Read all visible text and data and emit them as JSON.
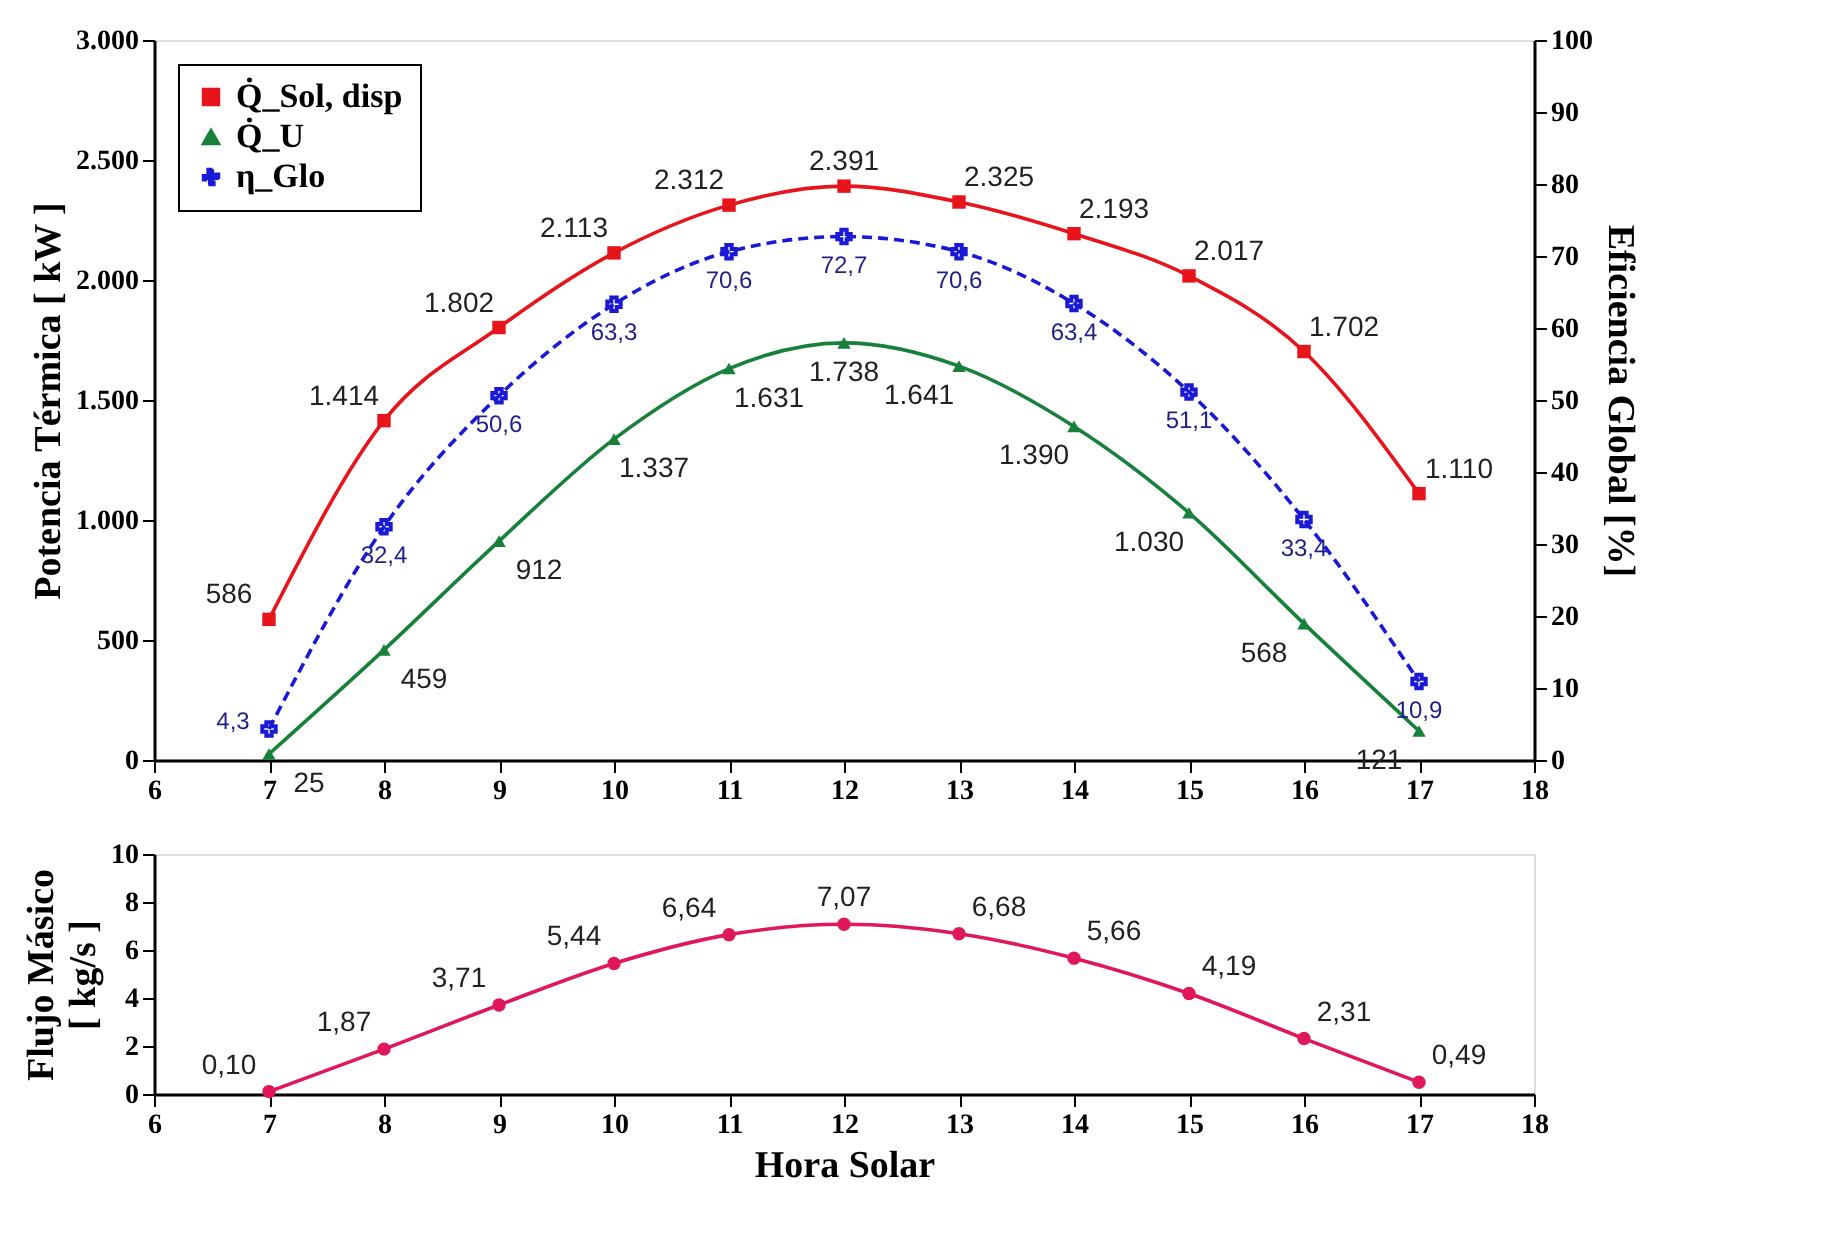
{
  "chart_data": [
    {
      "type": "line",
      "xlabel": null,
      "ylabel": "Potencia Térmica [ kW ]",
      "y2label": "Eficiencia Global [%]",
      "x": [
        7,
        8,
        9,
        10,
        11,
        12,
        13,
        14,
        15,
        16,
        17
      ],
      "xlim": [
        6,
        18
      ],
      "xticks": [
        6,
        7,
        8,
        9,
        10,
        11,
        12,
        13,
        14,
        15,
        16,
        17,
        18
      ],
      "ylim": [
        0,
        3000
      ],
      "yticks": [
        0,
        500,
        {
          "value": 1000,
          "label": "1.000"
        },
        {
          "value": 1500,
          "label": "1.500"
        },
        {
          "value": 2000,
          "label": "2.000"
        },
        {
          "value": 2500,
          "label": "2.500"
        },
        {
          "value": 3000,
          "label": "3.000"
        }
      ],
      "y2lim": [
        0,
        100
      ],
      "y2ticks": [
        0,
        10,
        20,
        30,
        40,
        50,
        60,
        70,
        80,
        90,
        100
      ],
      "grid": false,
      "legend": "top left",
      "series": [
        {
          "name": "Q̇_Sol, disp",
          "color": "#e8141b",
          "marker": "square",
          "line_style": "solid",
          "values": [
            586,
            1414,
            1802,
            2113,
            2312,
            2391,
            2325,
            2193,
            2017,
            1702,
            1110
          ],
          "value_labels": [
            "586",
            "1.414",
            "1.802",
            "2.113",
            "2.312",
            "2.391",
            "2.325",
            "2.193",
            "2.017",
            "1.702",
            "1.110"
          ]
        },
        {
          "name": "Q̇_U",
          "color": "#17803a",
          "marker": "triangle",
          "line_style": "solid",
          "values": [
            25,
            459,
            912,
            1337,
            1631,
            1738,
            1641,
            1390,
            1030,
            568,
            121
          ],
          "value_labels": [
            "25",
            "459",
            "912",
            "1.337",
            "1.631",
            "1.738",
            "1.641",
            "1.390",
            "1.030",
            "568",
            "121"
          ]
        },
        {
          "name": "η_Glo",
          "color": "#1a1ad6",
          "marker": "cross",
          "line_style": "dashed",
          "axis": "y2",
          "values": [
            4.3,
            32.4,
            50.6,
            63.3,
            70.6,
            72.7,
            70.6,
            63.4,
            51.1,
            33.4,
            10.9
          ],
          "value_labels": [
            "4,3",
            "32,4",
            "50,6",
            "63,3",
            "70,6",
            "72,7",
            "70,6",
            "63,4",
            "51,1",
            "33,4",
            "10,9"
          ]
        }
      ]
    },
    {
      "type": "line",
      "xlabel": "Hora Solar",
      "ylabel": "Flujo Másico\n[ kg/s ]",
      "x": [
        7,
        8,
        9,
        10,
        11,
        12,
        13,
        14,
        15,
        16,
        17
      ],
      "xlim": [
        6,
        18
      ],
      "xticks": [
        6,
        7,
        8,
        9,
        10,
        11,
        12,
        13,
        14,
        15,
        16,
        17,
        18
      ],
      "ylim": [
        0,
        10
      ],
      "yticks": [
        0,
        2,
        4,
        6,
        8,
        10
      ],
      "grid": false,
      "legend": false,
      "series": [
        {
          "color": "#e0185a",
          "marker": "circle",
          "line_style": "solid",
          "values": [
            0.1,
            1.87,
            3.71,
            5.44,
            6.64,
            7.07,
            6.68,
            5.66,
            4.19,
            2.31,
            0.49
          ],
          "value_labels": [
            "0,10",
            "1,87",
            "3,71",
            "5,44",
            "6,64",
            "7,07",
            "6,68",
            "5,66",
            "4,19",
            "2,31",
            "0,49"
          ]
        }
      ]
    }
  ]
}
